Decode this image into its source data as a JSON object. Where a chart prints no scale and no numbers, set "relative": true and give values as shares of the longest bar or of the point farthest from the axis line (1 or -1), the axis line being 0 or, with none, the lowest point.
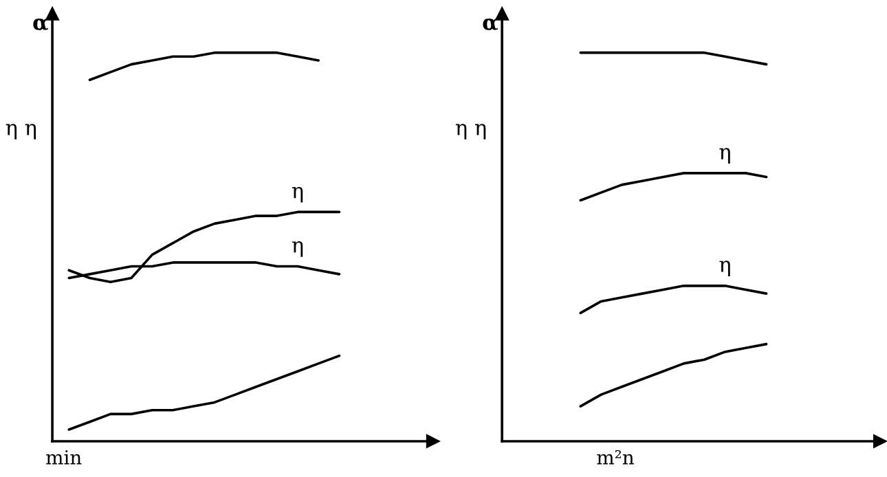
{
  "chart_data": [
    {
      "type": "line",
      "title": "α",
      "ylabel": "η η",
      "xlabel": "min",
      "relative": true,
      "line_style": "solid",
      "marker": "none",
      "categories": [
        null,
        null,
        null,
        null,
        null,
        null,
        null,
        null,
        null,
        null,
        null,
        null,
        null,
        null,
        null,
        null,
        null,
        null
      ],
      "series": [
        {
          "color": "#000000",
          "values": [
            null,
            0.93,
            0.95,
            0.97,
            0.98,
            0.99,
            0.99,
            1.0,
            1.0,
            1.0,
            1.0,
            0.99,
            0.98,
            null,
            null,
            null,
            null,
            null
          ]
        },
        {
          "name": "η",
          "color": "#000000",
          "values": [
            0.44,
            0.42,
            0.41,
            0.42,
            0.48,
            0.51,
            0.54,
            0.56,
            0.57,
            0.58,
            0.58,
            0.59,
            0.59,
            0.59,
            null,
            null,
            null,
            null
          ]
        },
        {
          "name": "η",
          "color": "#000000",
          "values": [
            0.42,
            0.43,
            0.44,
            0.45,
            0.45,
            0.46,
            0.46,
            0.46,
            0.46,
            0.46,
            0.45,
            0.45,
            0.44,
            0.43,
            null,
            null,
            null,
            null
          ]
        },
        {
          "color": "#000000",
          "values": [
            0.03,
            0.05,
            0.07,
            0.07,
            0.08,
            0.08,
            0.09,
            0.1,
            0.12,
            0.14,
            0.16,
            0.18,
            0.2,
            0.22,
            null,
            null,
            null,
            null
          ]
        }
      ]
    },
    {
      "type": "line",
      "title": "α",
      "ylabel": "η η",
      "xlabel": "m²n",
      "relative": true,
      "line_style": "solid",
      "marker": "none",
      "categories": [
        null,
        null,
        null,
        null,
        null,
        null,
        null,
        null,
        null,
        null,
        null,
        null,
        null,
        null,
        null,
        null,
        null,
        null
      ],
      "series": [
        {
          "color": "#000000",
          "values": [
            null,
            null,
            null,
            1.0,
            1.0,
            1.0,
            1.0,
            1.0,
            1.0,
            1.0,
            0.99,
            0.98,
            0.97,
            null,
            null,
            null,
            null,
            null
          ]
        },
        {
          "name": "η",
          "color": "#000000",
          "values": [
            null,
            null,
            null,
            0.62,
            0.64,
            0.66,
            0.67,
            0.68,
            0.69,
            0.69,
            0.69,
            0.69,
            0.68,
            null,
            null,
            null,
            null,
            null
          ]
        },
        {
          "name": "η",
          "color": "#000000",
          "values": [
            null,
            null,
            null,
            0.33,
            0.36,
            0.37,
            0.38,
            0.39,
            0.4,
            0.4,
            0.4,
            0.39,
            0.38,
            null,
            null,
            null,
            null,
            null
          ]
        },
        {
          "color": "#000000",
          "values": [
            null,
            null,
            null,
            0.09,
            0.12,
            0.14,
            0.16,
            0.18,
            0.2,
            0.21,
            0.23,
            0.24,
            0.25,
            null,
            null,
            null,
            null,
            null
          ]
        }
      ]
    }
  ]
}
